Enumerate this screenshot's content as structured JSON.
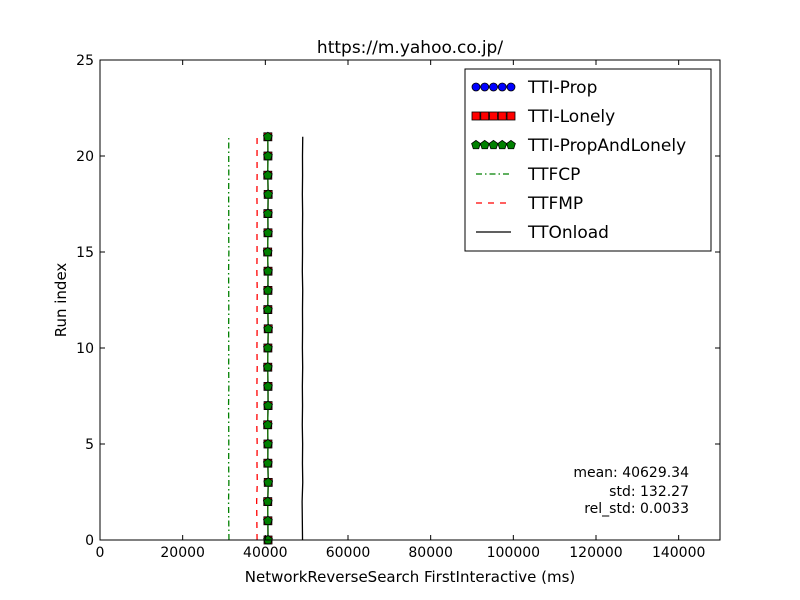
{
  "chart_data": {
    "type": "line",
    "title": "https://m.yahoo.co.jp/",
    "xlabel": "NetworkReverseSearch FirstInteractive (ms)",
    "ylabel": "Run index",
    "xlim": [
      0,
      150000
    ],
    "ylim": [
      0,
      25
    ],
    "x_ticks": [
      0,
      20000,
      40000,
      60000,
      80000,
      100000,
      120000,
      140000
    ],
    "x_tick_labels": [
      "0",
      "20000",
      "40000",
      "60000",
      "80000",
      "100000",
      "120000",
      "140000"
    ],
    "y_ticks": [
      0,
      5,
      10,
      15,
      20,
      25
    ],
    "y_tick_labels": [
      "0",
      "5",
      "10",
      "15",
      "20",
      "25"
    ],
    "grid": false,
    "legend_position": "top-right",
    "run_index": [
      0,
      1,
      2,
      3,
      4,
      5,
      6,
      7,
      8,
      9,
      10,
      11,
      12,
      13,
      14,
      15,
      16,
      17,
      18,
      19,
      20,
      21
    ],
    "series": [
      {
        "name": "TTI-Prop",
        "style": "line-circle-markers",
        "color": "#0000ff",
        "values": [
          40650,
          40620,
          40590,
          40700,
          40610,
          40630,
          40580,
          40660,
          40640,
          40600,
          40620,
          40690,
          40610,
          40630,
          40650,
          40570,
          40640,
          40620,
          40680,
          40600,
          40630,
          40610
        ]
      },
      {
        "name": "TTI-Lonely",
        "style": "line-square-markers",
        "color": "#ff0000",
        "values": [
          40650,
          40620,
          40590,
          40700,
          40610,
          40630,
          40580,
          40660,
          40640,
          40600,
          40620,
          40690,
          40610,
          40630,
          40650,
          40570,
          40640,
          40620,
          40680,
          40600,
          40630,
          40610
        ]
      },
      {
        "name": "TTI-PropAndLonely",
        "style": "line-pentagon-markers",
        "color": "#008000",
        "values": [
          40650,
          40620,
          40590,
          40700,
          40610,
          40630,
          40580,
          40660,
          40640,
          40600,
          40620,
          40690,
          40610,
          40630,
          40650,
          40570,
          40640,
          40620,
          40680,
          40600,
          40630,
          40610
        ]
      },
      {
        "name": "TTFCP",
        "style": "dash-dot",
        "color": "#008000",
        "values": [
          31200,
          31150,
          31100,
          31180,
          31120,
          31160,
          31140,
          31100,
          31170,
          31130,
          31150,
          31120,
          31160,
          31140,
          31110,
          31180,
          31130,
          31150,
          31120,
          31160,
          31140,
          31150
        ]
      },
      {
        "name": "TTFMP",
        "style": "dashed",
        "color": "#ff0000",
        "values": [
          38000,
          37950,
          37900,
          38050,
          37980,
          38020,
          37940,
          38000,
          37960,
          38030,
          37970,
          38010,
          37990,
          38040,
          37950,
          38000,
          37980,
          38020,
          37960,
          38010,
          37990,
          38000
        ]
      },
      {
        "name": "TTOnload",
        "style": "solid",
        "color": "#000000",
        "values": [
          49000,
          48950,
          48900,
          49050,
          48980,
          49020,
          48940,
          49000,
          48960,
          49030,
          48970,
          49010,
          48990,
          49040,
          48950,
          49000,
          48980,
          49020,
          48960,
          49010,
          48990,
          49050
        ]
      }
    ],
    "stats": {
      "mean": "mean: 40629.34",
      "std": "std: 132.27",
      "rel_std": "rel_std: 0.0033"
    }
  }
}
